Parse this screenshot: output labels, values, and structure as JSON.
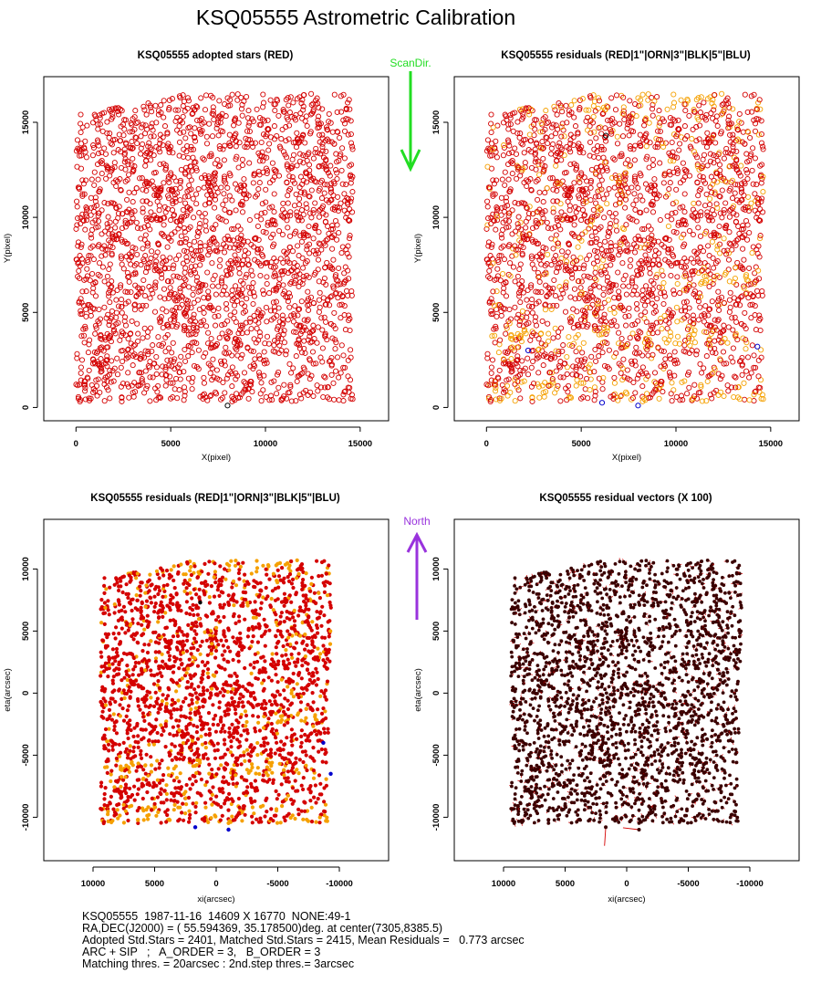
{
  "title": "KSQ05555 Astrometric Calibration",
  "colors": {
    "red": "#d40000",
    "orange": "#f5a000",
    "black": "#000000",
    "blue": "#0000cc",
    "green": "#22dd22",
    "purple": "#9933dd",
    "vector_dot": "#3a0000"
  },
  "scan_dir": {
    "label": "ScanDir.",
    "direction": "down"
  },
  "north": {
    "label": "North",
    "direction": "up"
  },
  "chart_data": [
    {
      "type": "scatter",
      "title": "KSQ05555 adopted stars (RED)",
      "xlabel": "X(pixel)",
      "ylabel": "Y(pixel)",
      "xlim": [
        -1700,
        16500
      ],
      "ylim": [
        -700,
        17400
      ],
      "xticks": [
        "0",
        "5000",
        "10000",
        "15000"
      ],
      "xtick_values": [
        0,
        5000,
        10000,
        15000
      ],
      "yticks": [
        "0",
        "5000",
        "10000",
        "15000"
      ],
      "ytick_values": [
        0,
        5000,
        10000,
        15000
      ],
      "marker": "open-circle",
      "n_points": 2401,
      "extent": {
        "x": [
          0,
          14609
        ],
        "y": [
          300,
          16500
        ]
      },
      "outliers": [
        {
          "x": 8000,
          "y": 100,
          "color": "black"
        }
      ]
    },
    {
      "type": "scatter",
      "title": "KSQ05555 residuals (RED|1\"|ORN|3\"|BLK|5\"|BLU)",
      "xlabel": "X(pixel)",
      "ylabel": "Y(pixel)",
      "xlim": [
        -1700,
        16500
      ],
      "ylim": [
        -700,
        17400
      ],
      "xticks": [
        "0",
        "5000",
        "10000",
        "15000"
      ],
      "xtick_values": [
        0,
        5000,
        10000,
        15000
      ],
      "yticks": [
        "0",
        "5000",
        "10000",
        "15000"
      ],
      "ytick_values": [
        0,
        5000,
        10000,
        15000
      ],
      "marker": "open-circle",
      "series": [
        {
          "color": "red",
          "threshold": "<1\""
        },
        {
          "color": "orange",
          "threshold": "1\"-3\""
        },
        {
          "color": "black",
          "threshold": "3\"-5\""
        },
        {
          "color": "blue",
          "threshold": ">5\""
        }
      ],
      "outliers": [
        {
          "x": 8000,
          "y": 100,
          "color": "blue"
        },
        {
          "x": 6100,
          "y": 250,
          "color": "blue"
        },
        {
          "x": 2200,
          "y": 3000,
          "color": "blue"
        },
        {
          "x": 14300,
          "y": 3200,
          "color": "blue"
        },
        {
          "x": 6300,
          "y": 14300,
          "color": "black"
        }
      ]
    },
    {
      "type": "scatter",
      "title": "KSQ05555 residuals (RED|1\"|ORN|3\"|BLK|5\"|BLU)",
      "xlabel": "xi(arcsec)",
      "ylabel": "eta(arcsec)",
      "xlim": [
        14000,
        -14000
      ],
      "ylim": [
        -13500,
        14000
      ],
      "xticks": [
        "10000",
        "5000",
        "0",
        "-5000",
        "-10000"
      ],
      "xtick_values": [
        10000,
        5000,
        0,
        -5000,
        -10000
      ],
      "yticks": [
        "-10000",
        "-5000",
        "0",
        "5000",
        "10000"
      ],
      "ytick_values": [
        -10000,
        -5000,
        0,
        5000,
        10000
      ],
      "marker": "filled-dot",
      "series": [
        {
          "color": "red",
          "threshold": "<1\""
        },
        {
          "color": "orange",
          "threshold": "1\"-3\""
        },
        {
          "color": "black",
          "threshold": "3\"-5\""
        },
        {
          "color": "blue",
          "threshold": ">5\""
        }
      ],
      "outliers": [
        {
          "x": -1000,
          "y": -11000,
          "color": "blue"
        },
        {
          "x": 1700,
          "y": -10800,
          "color": "blue"
        },
        {
          "x": -8700,
          "y": -4000,
          "color": "blue"
        },
        {
          "x": -9300,
          "y": -6500,
          "color": "blue"
        },
        {
          "x": 1300,
          "y": 7300,
          "color": "black"
        }
      ]
    },
    {
      "type": "scatter",
      "title": "KSQ05555 residual vectors (X 100)",
      "xlabel": "xi(arcsec)",
      "ylabel": "eta(arcsec)",
      "xlim": [
        14000,
        -14000
      ],
      "ylim": [
        -13500,
        14000
      ],
      "xticks": [
        "10000",
        "5000",
        "0",
        "-5000",
        "-10000"
      ],
      "xtick_values": [
        10000,
        5000,
        0,
        -5000,
        -10000
      ],
      "yticks": [
        "-10000",
        "-5000",
        "0",
        "5000",
        "10000"
      ],
      "ytick_values": [
        -10000,
        -5000,
        0,
        5000,
        10000
      ],
      "marker": "filled-dot-with-vector",
      "vector_scale": 100,
      "long_vectors": [
        {
          "x": 1700,
          "y": -10800,
          "dx": 100,
          "dy": -1500
        },
        {
          "x": -1000,
          "y": -11000,
          "dx": 1300,
          "dy": 150
        }
      ]
    }
  ],
  "footer": [
    "KSQ05555  1987-11-16  14609 X 16770  NONE:49-1",
    "RA,DEC(J2000) = ( 55.594369, 35.178500)deg. at center(7305,8385.5)",
    "Adopted Std.Stars = 2401, Matched Std.Stars = 2415, Mean Residuals =   0.773 arcsec",
    "ARC + SIP   ;   A_ORDER = 3,   B_ORDER = 3",
    "Matching thres. = 20arcsec : 2nd.step thres.= 3arcsec"
  ]
}
